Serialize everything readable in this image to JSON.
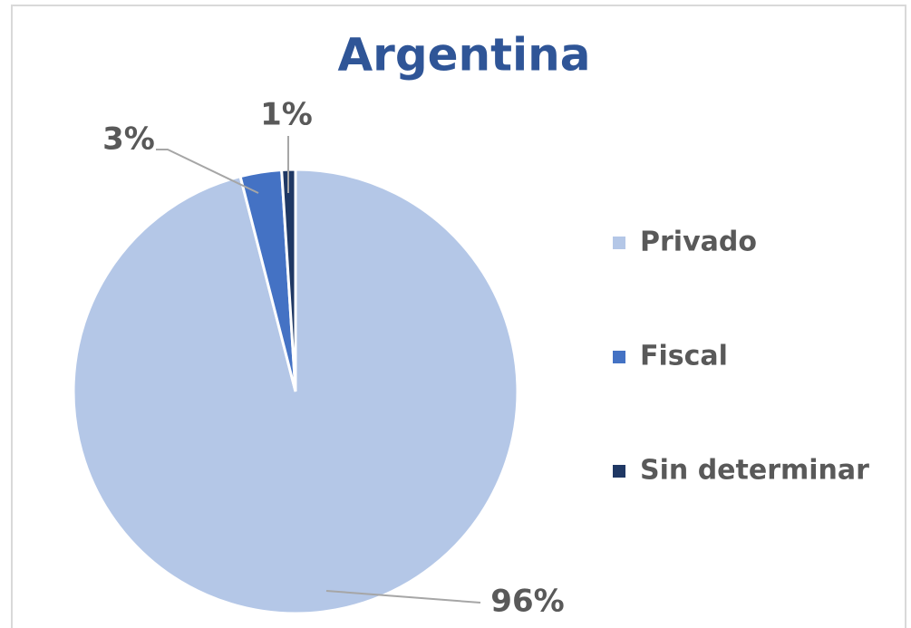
{
  "chart_data": {
    "type": "pie",
    "title": "Argentina",
    "categories": [
      "Privado",
      "Fiscal",
      "Sin determinar"
    ],
    "values": [
      96,
      3,
      1
    ],
    "value_labels": [
      "96%",
      "3%",
      "1%"
    ],
    "colors": [
      "#b4c7e7",
      "#4472c4",
      "#1f3864"
    ],
    "legend": "right"
  }
}
